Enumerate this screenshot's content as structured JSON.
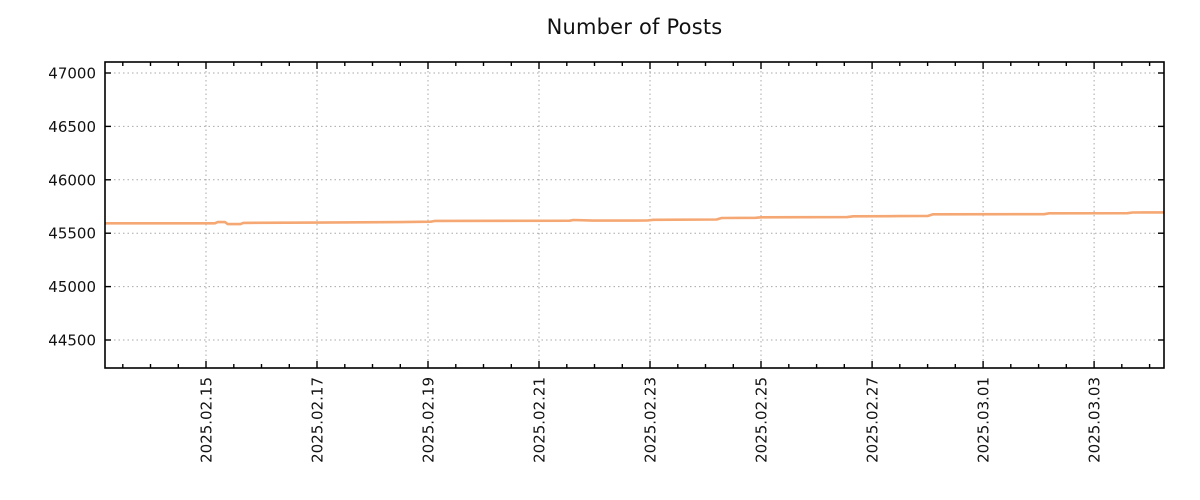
{
  "page": {
    "background": "#ffffff"
  },
  "chart_data": {
    "type": "line",
    "title": "Number of Posts",
    "legend": {
      "visible": false
    },
    "grid": {
      "visible": true,
      "style": "dotted",
      "color": "#a8a8a8"
    },
    "x_axis": {
      "label": "",
      "epoch_note": "day 0 = 2025.02.13 00:00",
      "range_days": [
        0.18,
        19.26
      ],
      "minor_tick_step_days": 0.5,
      "tick_label_rotation_deg": 90,
      "major_ticks": [
        {
          "day": 2,
          "label": "2025.02.15"
        },
        {
          "day": 4,
          "label": "2025.02.17"
        },
        {
          "day": 6,
          "label": "2025.02.19"
        },
        {
          "day": 8,
          "label": "2025.02.21"
        },
        {
          "day": 10,
          "label": "2025.02.23"
        },
        {
          "day": 12,
          "label": "2025.02.25"
        },
        {
          "day": 14,
          "label": "2025.02.27"
        },
        {
          "day": 16,
          "label": "2025.03.01"
        },
        {
          "day": 18,
          "label": "2025.03.03"
        }
      ]
    },
    "y_axis": {
      "label": "",
      "range": [
        44238,
        47103
      ],
      "ticks": [
        {
          "value": 44500,
          "label": "44500"
        },
        {
          "value": 45000,
          "label": "45000"
        },
        {
          "value": 45500,
          "label": "45500"
        },
        {
          "value": 46000,
          "label": "46000"
        },
        {
          "value": 46500,
          "label": "46500"
        },
        {
          "value": 47000,
          "label": "47000"
        }
      ]
    },
    "series": [
      {
        "name": "Number of Posts",
        "color": "#f5a873",
        "line_width": 2.6,
        "marker": "none",
        "points_day_value": [
          [
            0.18,
            45593
          ],
          [
            2.16,
            45593
          ],
          [
            2.21,
            45604
          ],
          [
            2.34,
            45604
          ],
          [
            2.39,
            45585
          ],
          [
            2.62,
            45585
          ],
          [
            2.67,
            45597
          ],
          [
            4.0,
            45599
          ],
          [
            5.5,
            45604
          ],
          [
            6.05,
            45608
          ],
          [
            6.13,
            45615
          ],
          [
            7.5,
            45616
          ],
          [
            8.55,
            45617
          ],
          [
            8.62,
            45624
          ],
          [
            8.97,
            45618
          ],
          [
            9.95,
            45619
          ],
          [
            10.06,
            45626
          ],
          [
            11.2,
            45628
          ],
          [
            11.29,
            45642
          ],
          [
            11.9,
            45644
          ],
          [
            12.0,
            45649
          ],
          [
            13.55,
            45651
          ],
          [
            13.66,
            45658
          ],
          [
            14.5,
            45660
          ],
          [
            15.0,
            45661
          ],
          [
            15.1,
            45677
          ],
          [
            17.1,
            45678
          ],
          [
            17.19,
            45686
          ],
          [
            18.6,
            45687
          ],
          [
            18.69,
            45694
          ],
          [
            19.26,
            45695
          ]
        ]
      }
    ],
    "colors": {
      "axis": "#000000",
      "text": "#111111",
      "background": "#ffffff"
    }
  }
}
